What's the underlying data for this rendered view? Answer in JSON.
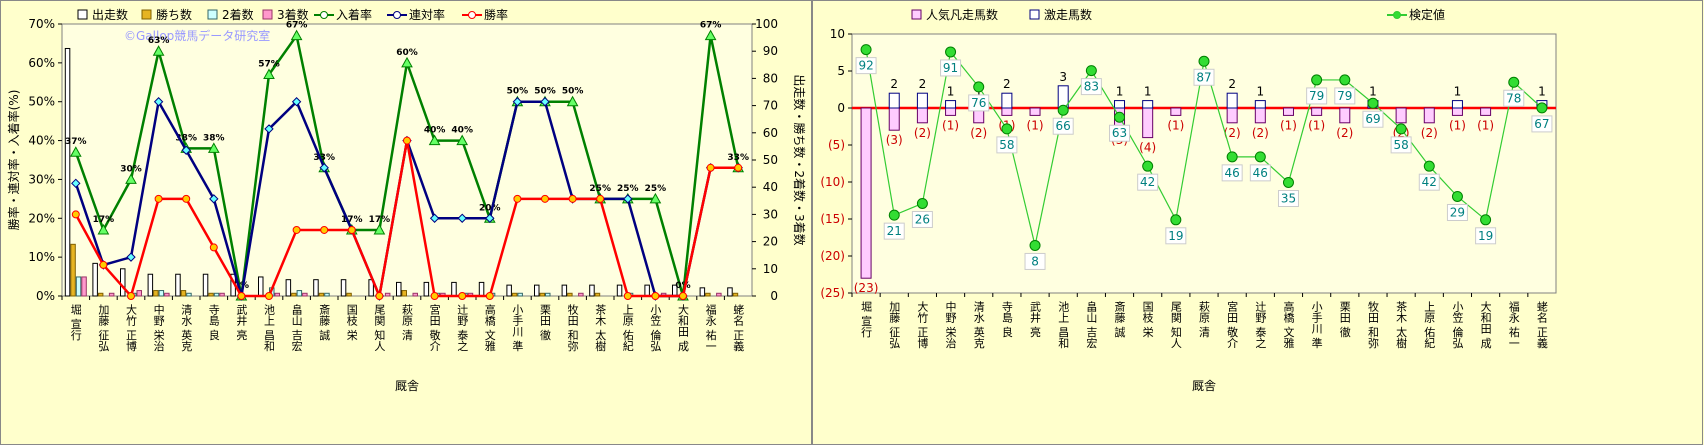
{
  "chart_data": [
    {
      "type": "combo",
      "x_label": "厩舎",
      "y_label": "勝率・連対率・入着率(%)",
      "y2_label": "出走数・勝ち数・2着数・3着数",
      "annotation": "©Gallop競馬データ研究室",
      "bar_mode": "grouped",
      "grid": false,
      "categories": [
        "堀 宣行",
        "加藤 征弘",
        "大竹 正博",
        "中野 栄治",
        "清水 英克",
        "寺島 良",
        "武井 亮",
        "池上 昌和",
        "畠山 吉宏",
        "斎藤 誠",
        "国枝 栄",
        "尾関 知人",
        "萩原 清",
        "宮田 敬介",
        "辻野 泰之",
        "高橋 文雅",
        "小手川 準",
        "栗田 徹",
        "牧田 和弥",
        "茶木 太樹",
        "上原 佑紀",
        "小笠 倫弘",
        "大和田 成",
        "福永 祐一",
        "蛯名 正義"
      ],
      "ylim": [
        0,
        70
      ],
      "yticks": [
        {
          "value": 0,
          "label": "0%"
        },
        {
          "value": 10,
          "label": "10%"
        },
        {
          "value": 20,
          "label": "20%"
        },
        {
          "value": 30,
          "label": "30%"
        },
        {
          "value": 40,
          "label": "40%"
        },
        {
          "value": 50,
          "label": "50%"
        },
        {
          "value": 60,
          "label": "60%"
        },
        {
          "value": 70,
          "label": "70%"
        }
      ],
      "y2lim": [
        0,
        100
      ],
      "y2ticks": [
        0,
        10,
        20,
        30,
        40,
        50,
        60,
        70,
        80,
        90,
        100
      ],
      "series": [
        {
          "name": "出走数",
          "kind": "bar",
          "axis": "y2",
          "color": "#ffffff",
          "edge": "#000000",
          "values": [
            91,
            12,
            10,
            8,
            8,
            8,
            8,
            7,
            6,
            6,
            6,
            6,
            5,
            5,
            5,
            5,
            4,
            4,
            4,
            4,
            4,
            4,
            4,
            3,
            3
          ]
        },
        {
          "name": "勝ち数",
          "kind": "bar",
          "axis": "y2",
          "color": "#e6b422",
          "edge": "#806000",
          "values": [
            19,
            1,
            0,
            2,
            2,
            1,
            0,
            0,
            1,
            1,
            1,
            0,
            2,
            0,
            0,
            0,
            1,
            1,
            1,
            1,
            0,
            0,
            0,
            1,
            1
          ]
        },
        {
          "name": "2着数",
          "kind": "bar",
          "axis": "y2",
          "color": "#ccffff",
          "edge": "#336666",
          "values": [
            7,
            0,
            1,
            2,
            1,
            1,
            0,
            3,
            2,
            1,
            0,
            0,
            0,
            1,
            1,
            1,
            1,
            1,
            0,
            0,
            1,
            0,
            0,
            0,
            0
          ]
        },
        {
          "name": "3着数",
          "kind": "bar",
          "axis": "y2",
          "color": "#ff99cc",
          "edge": "#993366",
          "values": [
            7,
            1,
            2,
            1,
            0,
            1,
            0,
            1,
            1,
            0,
            0,
            1,
            1,
            1,
            1,
            0,
            0,
            0,
            1,
            0,
            0,
            1,
            0,
            1,
            0
          ]
        },
        {
          "name": "入着率",
          "kind": "line",
          "axis": "y",
          "color": "#008000",
          "marker": "triangle",
          "values": [
            37,
            17,
            30,
            63,
            38,
            38,
            0,
            57,
            67,
            33,
            17,
            17,
            60,
            40,
            40,
            20,
            50,
            50,
            50,
            25,
            25,
            25,
            0,
            67,
            33
          ],
          "value_labels": [
            "37%",
            "17%",
            "30%",
            "63%",
            "38%",
            "38%",
            "0%",
            "57%",
            "67%",
            "33%",
            "17%",
            "17%",
            "60%",
            "40%",
            "40%",
            "20%",
            "50%",
            "50%",
            "50%",
            "25%",
            "25%",
            "25%",
            "0%",
            "67%",
            "33%"
          ]
        },
        {
          "name": "連対率",
          "kind": "line",
          "axis": "y",
          "color": "#000080",
          "marker": "diamond",
          "values": [
            29,
            8,
            10,
            50,
            37.5,
            25,
            0,
            43,
            50,
            33,
            17,
            0,
            40,
            20,
            20,
            20,
            50,
            50,
            25,
            25,
            25,
            0,
            0,
            33,
            33
          ]
        },
        {
          "name": "勝率",
          "kind": "line",
          "axis": "y",
          "color": "#ff0000",
          "marker": "circle",
          "values": [
            21,
            8,
            0,
            25,
            25,
            12.5,
            0,
            0,
            17,
            17,
            17,
            0,
            40,
            0,
            0,
            0,
            25,
            25,
            25,
            25,
            0,
            0,
            0,
            33,
            33
          ]
        }
      ]
    },
    {
      "type": "combo",
      "x_label": "厩舎",
      "bar_mode": "overlap",
      "grid": false,
      "zero_line_color": "#ff0000",
      "categories": [
        "堀 宣行",
        "加藤 征弘",
        "大竹 正博",
        "中野 栄治",
        "清水 英克",
        "寺島 良",
        "武井 亮",
        "池上 昌和",
        "畠山 吉宏",
        "斎藤 誠",
        "国枝 栄",
        "尾関 知人",
        "萩原 清",
        "宮田 敬介",
        "辻野 泰之",
        "高橋 文雅",
        "小手川 準",
        "栗田 徹",
        "牧田 和弥",
        "茶木 太樹",
        "上原 佑紀",
        "小笠 倫弘",
        "大和田 成",
        "福永 祐一",
        "蛯名 正義"
      ],
      "ylim": [
        -25,
        10
      ],
      "yticks": [
        {
          "value": -25,
          "label": "(25)"
        },
        {
          "value": -20,
          "label": "(20)"
        },
        {
          "value": -15,
          "label": "(15)"
        },
        {
          "value": -10,
          "label": "(10)"
        },
        {
          "value": -5,
          "label": "(5)"
        },
        0,
        5,
        10
      ],
      "y2lim": [
        -12.4,
        98.7
      ],
      "series": [
        {
          "name": "人気凡走馬数",
          "kind": "bar",
          "axis": "y",
          "color": "#ffccff",
          "edge": "#660066",
          "values": [
            -23,
            -3,
            -2,
            -1,
            -2,
            -1,
            -1,
            0,
            0,
            -3,
            -4,
            -1,
            0,
            -2,
            -2,
            -1,
            -1,
            -2,
            0,
            -2,
            -2,
            -1,
            -1,
            0,
            0
          ],
          "value_labels": [
            "(23)",
            "(3)",
            "(2)",
            "(1)",
            "(2)",
            "(1)",
            "(1)",
            null,
            null,
            "(3)",
            "(4)",
            "(1)",
            null,
            "(2)",
            "(2)",
            "(1)",
            "(1)",
            "(2)",
            null,
            "(2)",
            "(2)",
            "(1)",
            "(1)",
            null,
            null
          ]
        },
        {
          "name": "激走馬数",
          "kind": "bar",
          "axis": "y",
          "color": "#ffffff",
          "edge": "#000080",
          "values": [
            0,
            2,
            2,
            1,
            1,
            2,
            0,
            3,
            0,
            1,
            1,
            0,
            0,
            2,
            1,
            0,
            0,
            0,
            1,
            0,
            0,
            1,
            0,
            0,
            1
          ],
          "value_labels": [
            null,
            "2",
            "2",
            "1",
            "1",
            "2",
            null,
            "3",
            null,
            "1",
            "1",
            null,
            null,
            "2",
            "1",
            null,
            null,
            null,
            "1",
            null,
            null,
            "1",
            null,
            null,
            "1"
          ]
        },
        {
          "name": "検定値",
          "kind": "line",
          "axis": "y2",
          "color": "#33cc33",
          "marker": "circle",
          "boxed_labels": true,
          "values": [
            92,
            21,
            26,
            91,
            76,
            58,
            8,
            66,
            83,
            63,
            42,
            19,
            87,
            46,
            46,
            35,
            79,
            79,
            69,
            58,
            42,
            29,
            19,
            78,
            67
          ]
        }
      ]
    }
  ]
}
